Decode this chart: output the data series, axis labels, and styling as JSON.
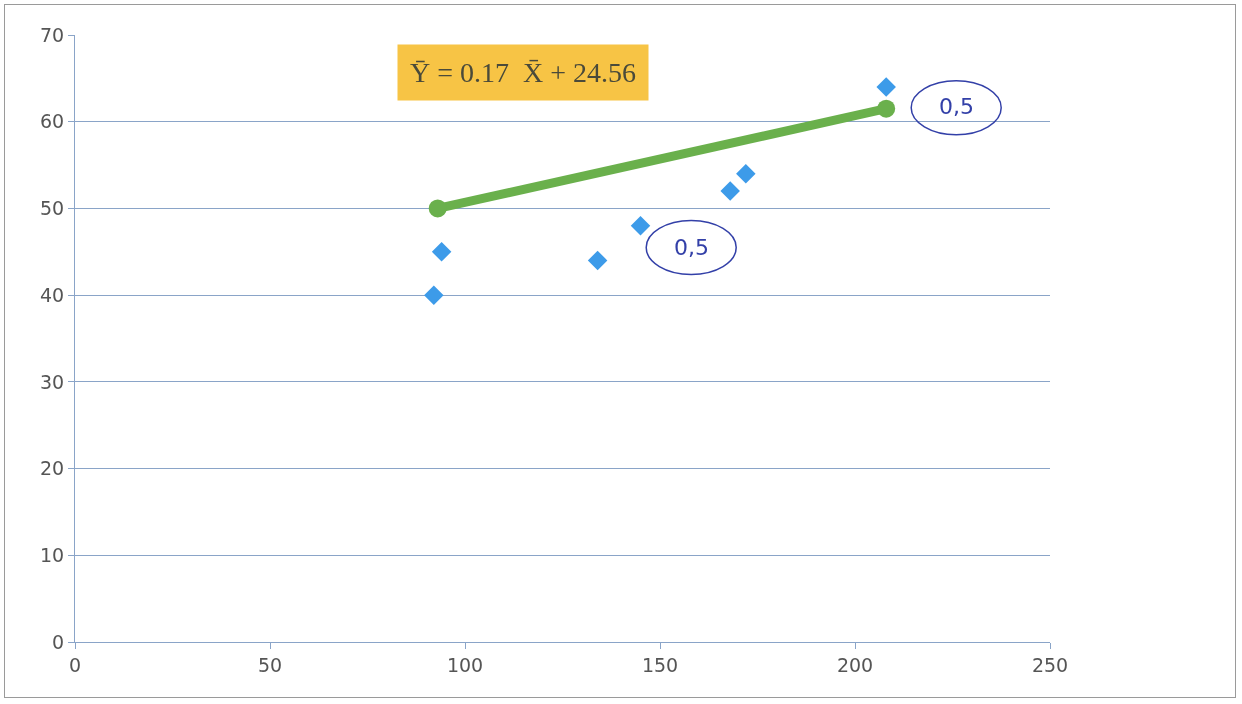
{
  "chart_data": {
    "type": "scatter",
    "xlim": [
      0,
      250
    ],
    "xticks": [
      0,
      50,
      100,
      150,
      200,
      250
    ],
    "ylim": [
      0,
      70
    ],
    "yticks": [
      0,
      10,
      20,
      30,
      40,
      50,
      60,
      70
    ],
    "grid": "y",
    "series": [
      {
        "color": "#3d9be9",
        "marker": "diamond",
        "x": [
          92,
          94,
          134,
          145,
          168,
          172,
          208
        ],
        "values": [
          40,
          45,
          44,
          48,
          52,
          54,
          64
        ]
      },
      {
        "type": "line",
        "color": "#6ab04c",
        "marker": "circle",
        "line_style": "solid",
        "x": [
          93,
          208
        ],
        "values": [
          50,
          61.5
        ]
      }
    ],
    "annotations": [
      "Ȳ = 0.17  X̄ + 24.56",
      {
        "text": "0,5",
        "x": 208,
        "y": 61.5
      },
      "0,5"
    ]
  }
}
